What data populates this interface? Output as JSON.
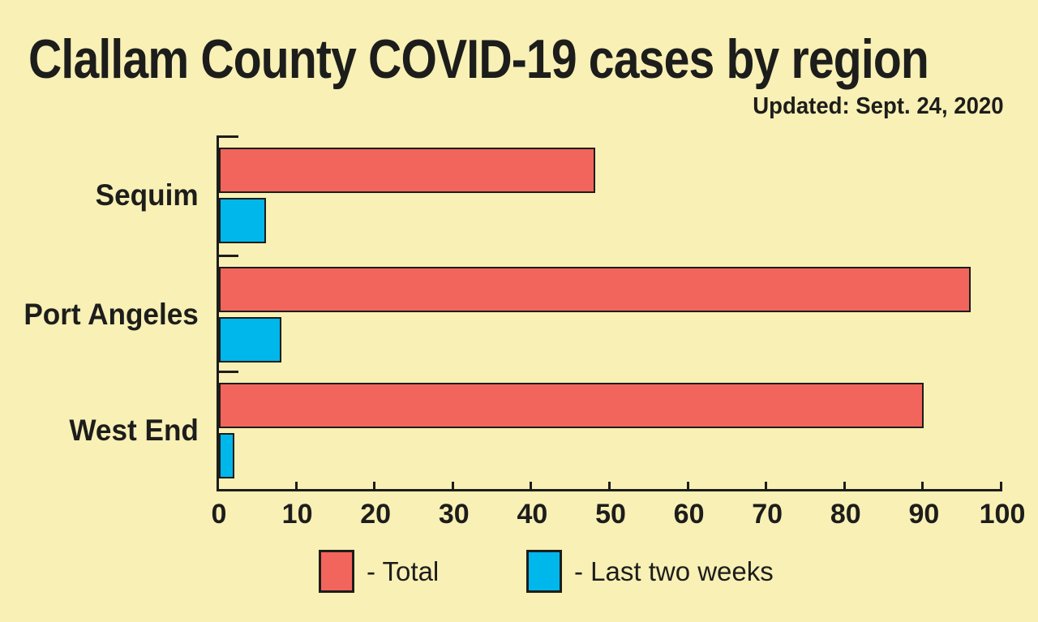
{
  "colors": {
    "background": "#F8F0B5",
    "ink": "#1D1D1B",
    "total_bar": "#F2655C",
    "last_two_weeks_bar": "#00B7EB"
  },
  "chart_data": {
    "type": "bar",
    "orientation": "horizontal",
    "title": "Clallam County COVID-19 cases by region",
    "subtitle": "Updated: Sept. 24, 2020",
    "categories": [
      "Sequim",
      "Port Angeles",
      "West End"
    ],
    "series": [
      {
        "name": "Total",
        "legend_label": "- Total",
        "color": "#F2655C",
        "values": [
          48,
          96,
          90
        ]
      },
      {
        "name": "Last two weeks",
        "legend_label": "- Last two weeks",
        "color": "#00B7EB",
        "values": [
          6,
          8,
          2
        ]
      }
    ],
    "xlim": [
      0,
      100
    ],
    "x_ticks": [
      0,
      10,
      20,
      30,
      40,
      50,
      60,
      70,
      80,
      90,
      100
    ],
    "xlabel": "",
    "ylabel": "",
    "grid": false,
    "legend_position": "bottom"
  }
}
